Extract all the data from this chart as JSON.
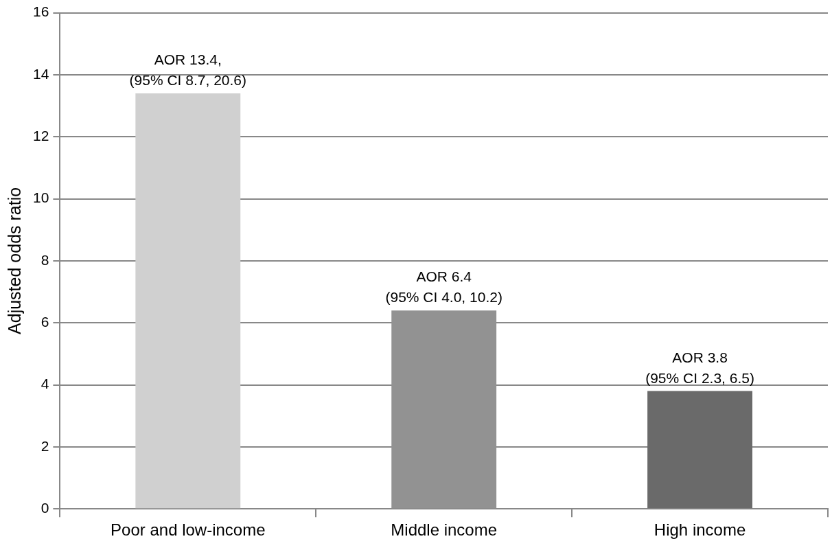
{
  "chart_data": {
    "type": "bar",
    "ylabel": "Adjusted odds ratio",
    "categories": [
      "Poor and low-income",
      "Middle income",
      "High income"
    ],
    "values": [
      13.4,
      6.4,
      3.8
    ],
    "colors": [
      "#d0d0d0",
      "#929292",
      "#6a6a6a"
    ],
    "value_labels": [
      "AOR 13.4,\n(95% CI 8.7, 20.6)",
      "AOR 6.4\n(95% CI 4.0, 10.2)",
      "AOR 3.8\n(95% CI 2.3, 6.5)"
    ],
    "ylim": [
      0,
      16
    ],
    "yticks": [
      0,
      2,
      4,
      6,
      8,
      10,
      12,
      14,
      16
    ],
    "grid": "y",
    "legend": false
  }
}
